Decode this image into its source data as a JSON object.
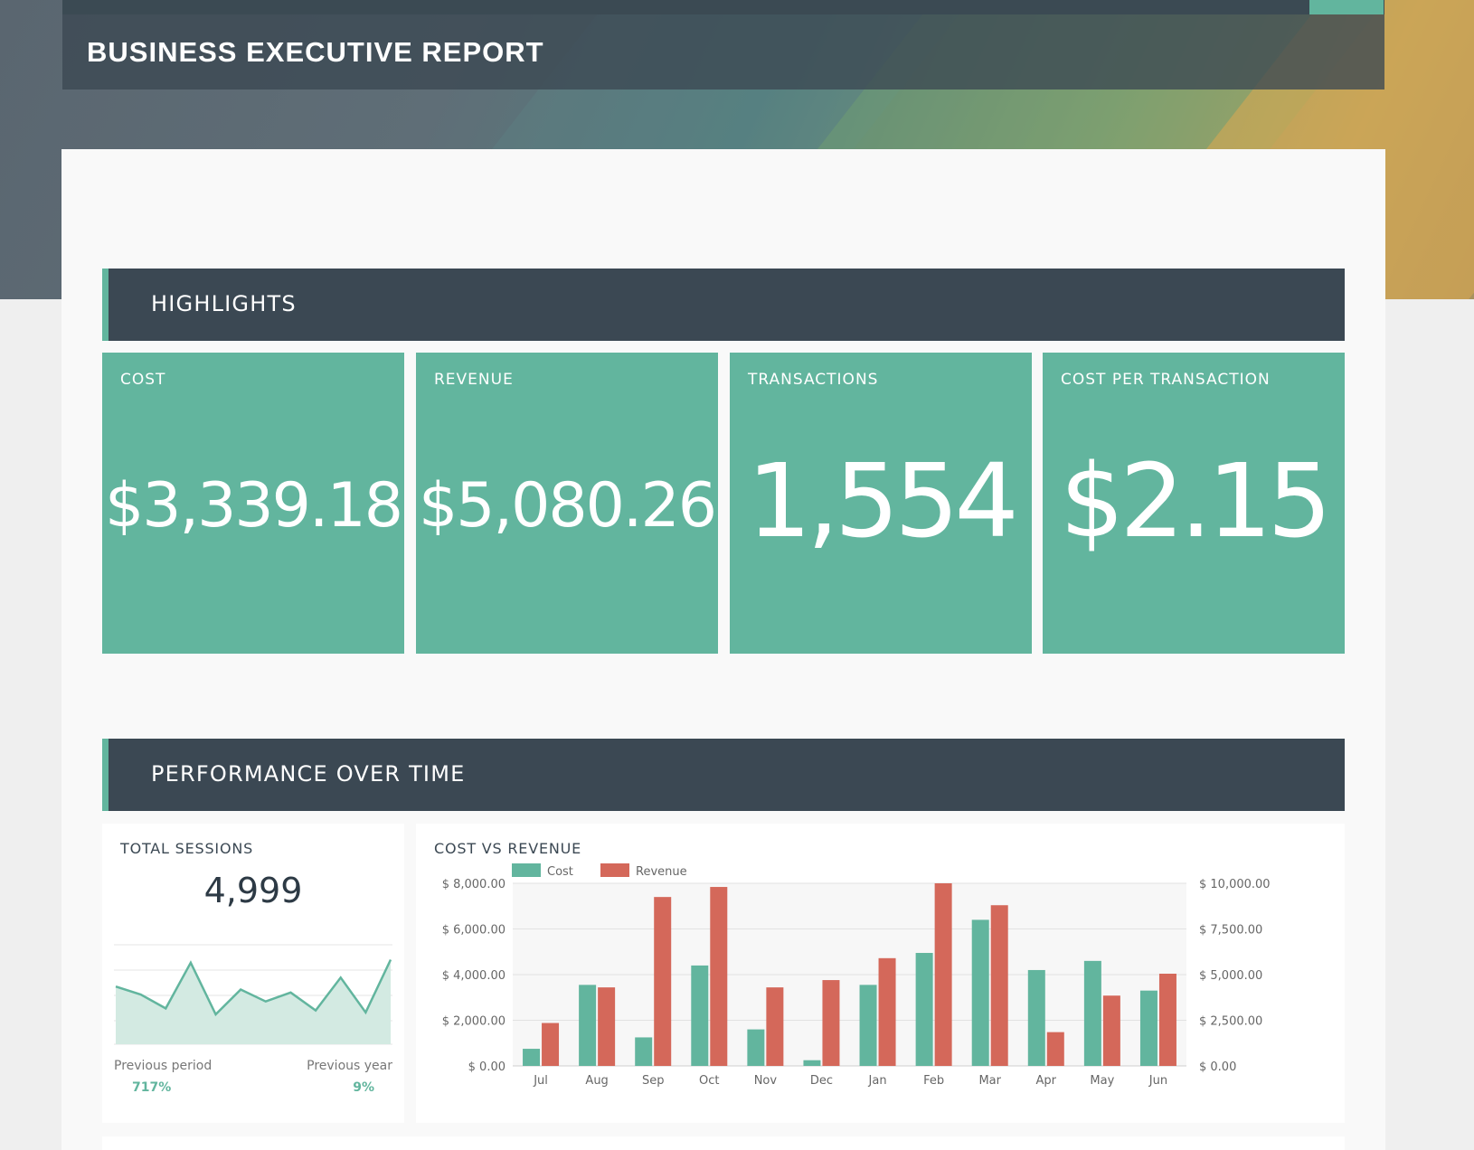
{
  "header": {
    "title": "BUSINESS EXECUTIVE REPORT"
  },
  "colors": {
    "accent": "#62b59e",
    "header_dark": "#3b4853",
    "revenue": "#d4685a"
  },
  "highlights": {
    "section_title": "HIGHLIGHTS",
    "kpis": [
      {
        "label": "COST",
        "value": "$3,339.18"
      },
      {
        "label": "REVENUE",
        "value": "$5,080.26"
      },
      {
        "label": "TRANSACTIONS",
        "value": "1,554"
      },
      {
        "label": "COST PER TRANSACTION",
        "value": "$2.15"
      }
    ]
  },
  "performance": {
    "section_title": "PERFORMANCE OVER TIME",
    "sessions": {
      "title": "TOTAL SESSIONS",
      "value": "4,999",
      "previous_period_label": "Previous period",
      "previous_period_value": "717%",
      "previous_year_label": "Previous year",
      "previous_year_value": "9%"
    },
    "cost_vs_revenue": {
      "title": "COST VS REVENUE"
    }
  },
  "chart_data": [
    {
      "type": "area",
      "title": "TOTAL SESSIONS",
      "values": [
        58,
        50,
        36,
        82,
        30,
        55,
        43,
        52,
        34,
        67,
        32,
        85
      ],
      "ylim": [
        0,
        100
      ],
      "grid": true
    },
    {
      "type": "bar",
      "title": "COST VS REVENUE",
      "categories": [
        "Jul",
        "Aug",
        "Sep",
        "Oct",
        "Nov",
        "Dec",
        "Jan",
        "Feb",
        "Mar",
        "Apr",
        "May",
        "Jun"
      ],
      "series": [
        {
          "name": "Cost",
          "axis": "left",
          "color": "#62b59e",
          "values": [
            750,
            3550,
            1250,
            4400,
            1600,
            250,
            3550,
            4950,
            6400,
            4200,
            4600,
            3300
          ]
        },
        {
          "name": "Revenue",
          "axis": "right",
          "color": "#d4685a",
          "values": [
            2350,
            4300,
            9250,
            9800,
            4300,
            4700,
            5900,
            10000,
            8800,
            1850,
            3850,
            5050
          ]
        }
      ],
      "left_axis": {
        "ylim": [
          0,
          8000
        ],
        "ticks": [
          "$ 0.00",
          "$ 2,000.00",
          "$ 4,000.00",
          "$ 6,000.00",
          "$ 8,000.00"
        ]
      },
      "right_axis": {
        "ylim": [
          0,
          10000
        ],
        "ticks": [
          "$ 0.00",
          "$ 2,500.00",
          "$ 5,000.00",
          "$ 7,500.00",
          "$ 10,000.00"
        ]
      },
      "legend": "top-left",
      "grid": true
    }
  ]
}
